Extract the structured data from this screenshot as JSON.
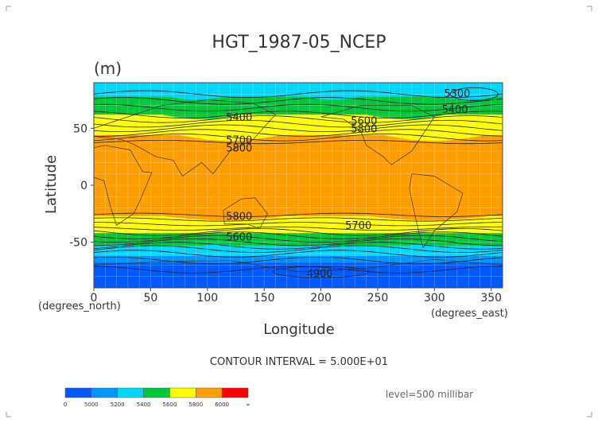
{
  "chart_data": {
    "type": "heatmap",
    "title": "HGT_1987-05_NCEP",
    "units_label": "(m)",
    "xlabel": "Longitude",
    "ylabel": "Latitude",
    "x_unit_label": "(degrees_east)",
    "y_unit_label": "(degrees_north)",
    "xlim": [
      0,
      360
    ],
    "ylim": [
      -90,
      90
    ],
    "x_ticks": [
      "0",
      "50",
      "100",
      "150",
      "200",
      "250",
      "300",
      "350"
    ],
    "y_ticks": [
      "50",
      "0",
      "-50"
    ],
    "contour_interval_text": "CONTOUR INTERVAL = 5.000E+01",
    "level_text": "level=500 millibar",
    "contour_labels": [
      {
        "text": "5300",
        "lon": 320,
        "lat": 81
      },
      {
        "text": "5400",
        "lon": 128,
        "lat": 60
      },
      {
        "text": "5400",
        "lon": 318,
        "lat": 67
      },
      {
        "text": "5600",
        "lon": 238,
        "lat": 57
      },
      {
        "text": "5800",
        "lon": 238,
        "lat": 50
      },
      {
        "text": "5700",
        "lon": 128,
        "lat": 40
      },
      {
        "text": "5800",
        "lon": 128,
        "lat": 33
      },
      {
        "text": "5800",
        "lon": 128,
        "lat": -27
      },
      {
        "text": "5700",
        "lon": 233,
        "lat": -35
      },
      {
        "text": "5600",
        "lon": 128,
        "lat": -45
      },
      {
        "text": "4900",
        "lon": 199,
        "lat": -77
      }
    ],
    "zonal_bands": [
      {
        "lat_from": 90,
        "lat_to": 78,
        "range": "5200-5400",
        "color": "#00d7ff"
      },
      {
        "lat_from": 78,
        "lat_to": 62,
        "range": "5400-5600",
        "color": "#00c83c"
      },
      {
        "lat_from": 62,
        "lat_to": 44,
        "range": "5600-5800",
        "color": "#ffff00"
      },
      {
        "lat_from": 44,
        "lat_to": -27,
        "range": "5800-6000",
        "color": "#ff9e00"
      },
      {
        "lat_from": -27,
        "lat_to": -42,
        "range": "5600-5800",
        "color": "#ffff00"
      },
      {
        "lat_from": -42,
        "lat_to": -53,
        "range": "5400-5600",
        "color": "#00c83c"
      },
      {
        "lat_from": -53,
        "lat_to": -62,
        "range": "5200-5400",
        "color": "#00d7ff"
      },
      {
        "lat_from": -62,
        "lat_to": -68,
        "range": "5000-5200",
        "color": "#0096ff"
      },
      {
        "lat_from": -68,
        "lat_to": -90,
        "range": "0-5000",
        "color": "#005aff"
      }
    ],
    "colorbar": {
      "colors": [
        "#005aff",
        "#0096ff",
        "#00d7ff",
        "#00c83c",
        "#ffff00",
        "#ff9e00",
        "#ff0000"
      ],
      "labels": [
        "0",
        "5000",
        "5200",
        "5400",
        "5600",
        "5800",
        "6000",
        "∞"
      ]
    },
    "grid": true
  }
}
